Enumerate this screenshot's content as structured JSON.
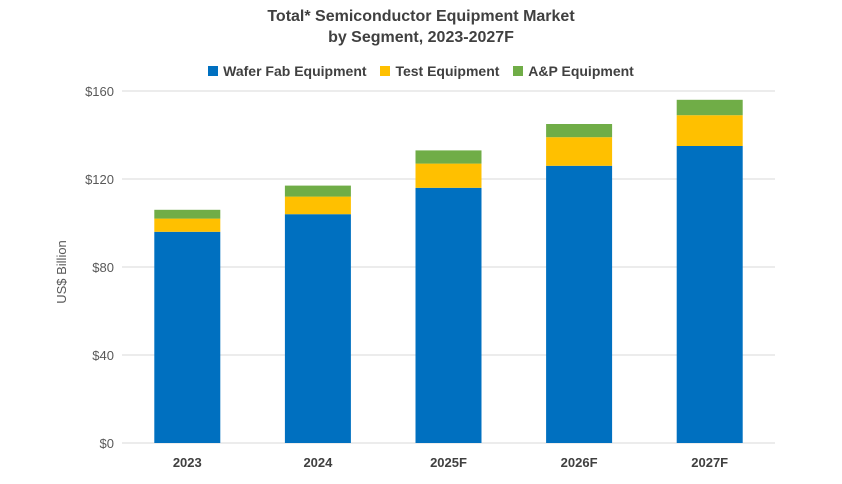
{
  "chart_data": {
    "type": "bar",
    "stacked": true,
    "title_lines": [
      "Total* Semiconductor Equipment Market",
      "by Segment, 2023-2027F"
    ],
    "categories": [
      "2023",
      "2024",
      "2025F",
      "2026F",
      "2027F"
    ],
    "series": [
      {
        "name": "Wafer Fab Equipment",
        "color": "#0070C0",
        "values": [
          96,
          104,
          116,
          126,
          135
        ]
      },
      {
        "name": "Test Equipment",
        "color": "#FFC000",
        "values": [
          6,
          8,
          11,
          13,
          14
        ]
      },
      {
        "name": "A&P Equipment",
        "color": "#70AD47",
        "values": [
          4,
          5,
          6,
          6,
          7
        ]
      }
    ],
    "ylabel": "US$ Billion",
    "ylim": [
      0,
      160
    ],
    "yticks": [
      0,
      40,
      80,
      120,
      160
    ],
    "ytick_labels": [
      "$0",
      "$40",
      "$80",
      "$120",
      "$160"
    ],
    "grid": true,
    "legend_position": "top"
  }
}
